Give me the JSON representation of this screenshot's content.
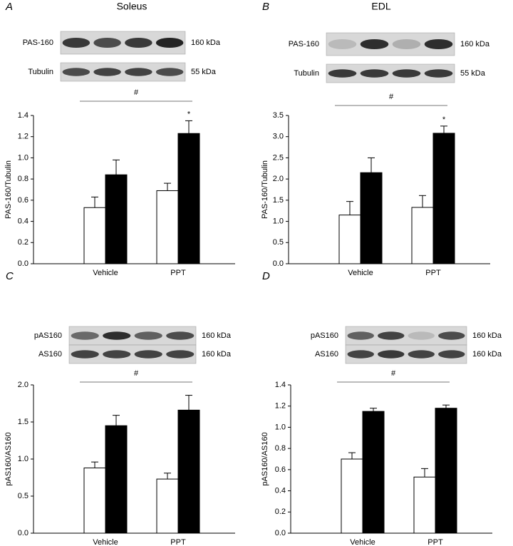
{
  "chart_data": [
    {
      "type": "bar",
      "panel": "A",
      "title": "Soleus",
      "blots": [
        {
          "label": "PAS-160",
          "size": "160 kDa"
        },
        {
          "label": "Tubulin",
          "size": "55 kDa"
        }
      ],
      "annotations": [
        "#",
        "*"
      ],
      "y_label": "PAS-160/Tubulin",
      "categories": [
        "Vehicle",
        "PPT"
      ],
      "series": [
        {
          "color": "#ffffff",
          "values": [
            0.53,
            0.69
          ],
          "errors": [
            0.1,
            0.07
          ]
        },
        {
          "color": "#000000",
          "values": [
            0.84,
            1.23
          ],
          "errors": [
            0.14,
            0.12
          ]
        }
      ],
      "ylim": [
        0,
        1.4
      ],
      "yticks": [
        {
          "value": 0,
          "label": "0.0"
        },
        0.2,
        0.4,
        0.6,
        0.8,
        {
          "value": 1,
          "label": "1.0"
        },
        1.2,
        1.4
      ]
    },
    {
      "type": "bar",
      "panel": "B",
      "title": "EDL",
      "blots": [
        {
          "label": "PAS-160",
          "size": "160 kDa"
        },
        {
          "label": "Tubulin",
          "size": "55 kDa"
        }
      ],
      "annotations": [
        "#",
        "*"
      ],
      "y_label": "PAS-160/Tubulin",
      "categories": [
        "Vehicle",
        "PPT"
      ],
      "series": [
        {
          "color": "#ffffff",
          "values": [
            1.15,
            1.33
          ],
          "errors": [
            0.32,
            0.28
          ]
        },
        {
          "color": "#000000",
          "values": [
            2.15,
            3.08
          ],
          "errors": [
            0.35,
            0.17
          ]
        }
      ],
      "ylim": [
        0,
        3.5
      ],
      "yticks": [
        {
          "value": 0,
          "label": "0.0"
        },
        0.5,
        {
          "value": 1,
          "label": "1.0"
        },
        1.5,
        {
          "value": 2,
          "label": "2.0"
        },
        2.5,
        {
          "value": 3,
          "label": "3.0"
        },
        3.5
      ]
    },
    {
      "type": "bar",
      "panel": "C",
      "blots": [
        {
          "label": "pAS160",
          "size": "160 kDa"
        },
        {
          "label": "AS160",
          "size": "160 kDa"
        }
      ],
      "annotations": [
        "#"
      ],
      "y_label": "pAS160/AS160",
      "categories": [
        "Vehicle",
        "PPT"
      ],
      "series": [
        {
          "color": "#ffffff",
          "values": [
            0.88,
            0.73
          ],
          "errors": [
            0.08,
            0.08
          ]
        },
        {
          "color": "#000000",
          "values": [
            1.45,
            1.66
          ],
          "errors": [
            0.14,
            0.2
          ]
        }
      ],
      "ylim": [
        0,
        2.0
      ],
      "yticks": [
        {
          "value": 0,
          "label": "0.0"
        },
        0.5,
        {
          "value": 1,
          "label": "1.0"
        },
        1.5,
        {
          "value": 2,
          "label": "2.0"
        }
      ]
    },
    {
      "type": "bar",
      "panel": "D",
      "blots": [
        {
          "label": "pAS160",
          "size": "160 kDa"
        },
        {
          "label": "AS160",
          "size": "160 kDa"
        }
      ],
      "annotations": [
        "#"
      ],
      "y_label": "pAS160/AS160",
      "categories": [
        "Vehicle",
        "PPT"
      ],
      "series": [
        {
          "color": "#ffffff",
          "values": [
            0.7,
            0.53
          ],
          "errors": [
            0.06,
            0.08
          ]
        },
        {
          "color": "#000000",
          "values": [
            1.15,
            1.18
          ],
          "errors": [
            0.03,
            0.03
          ]
        }
      ],
      "ylim": [
        0,
        1.4
      ],
      "yticks": [
        {
          "value": 0,
          "label": "0.0"
        },
        0.2,
        0.4,
        0.6,
        0.8,
        {
          "value": 1,
          "label": "1.0"
        },
        1.2,
        1.4
      ]
    }
  ]
}
